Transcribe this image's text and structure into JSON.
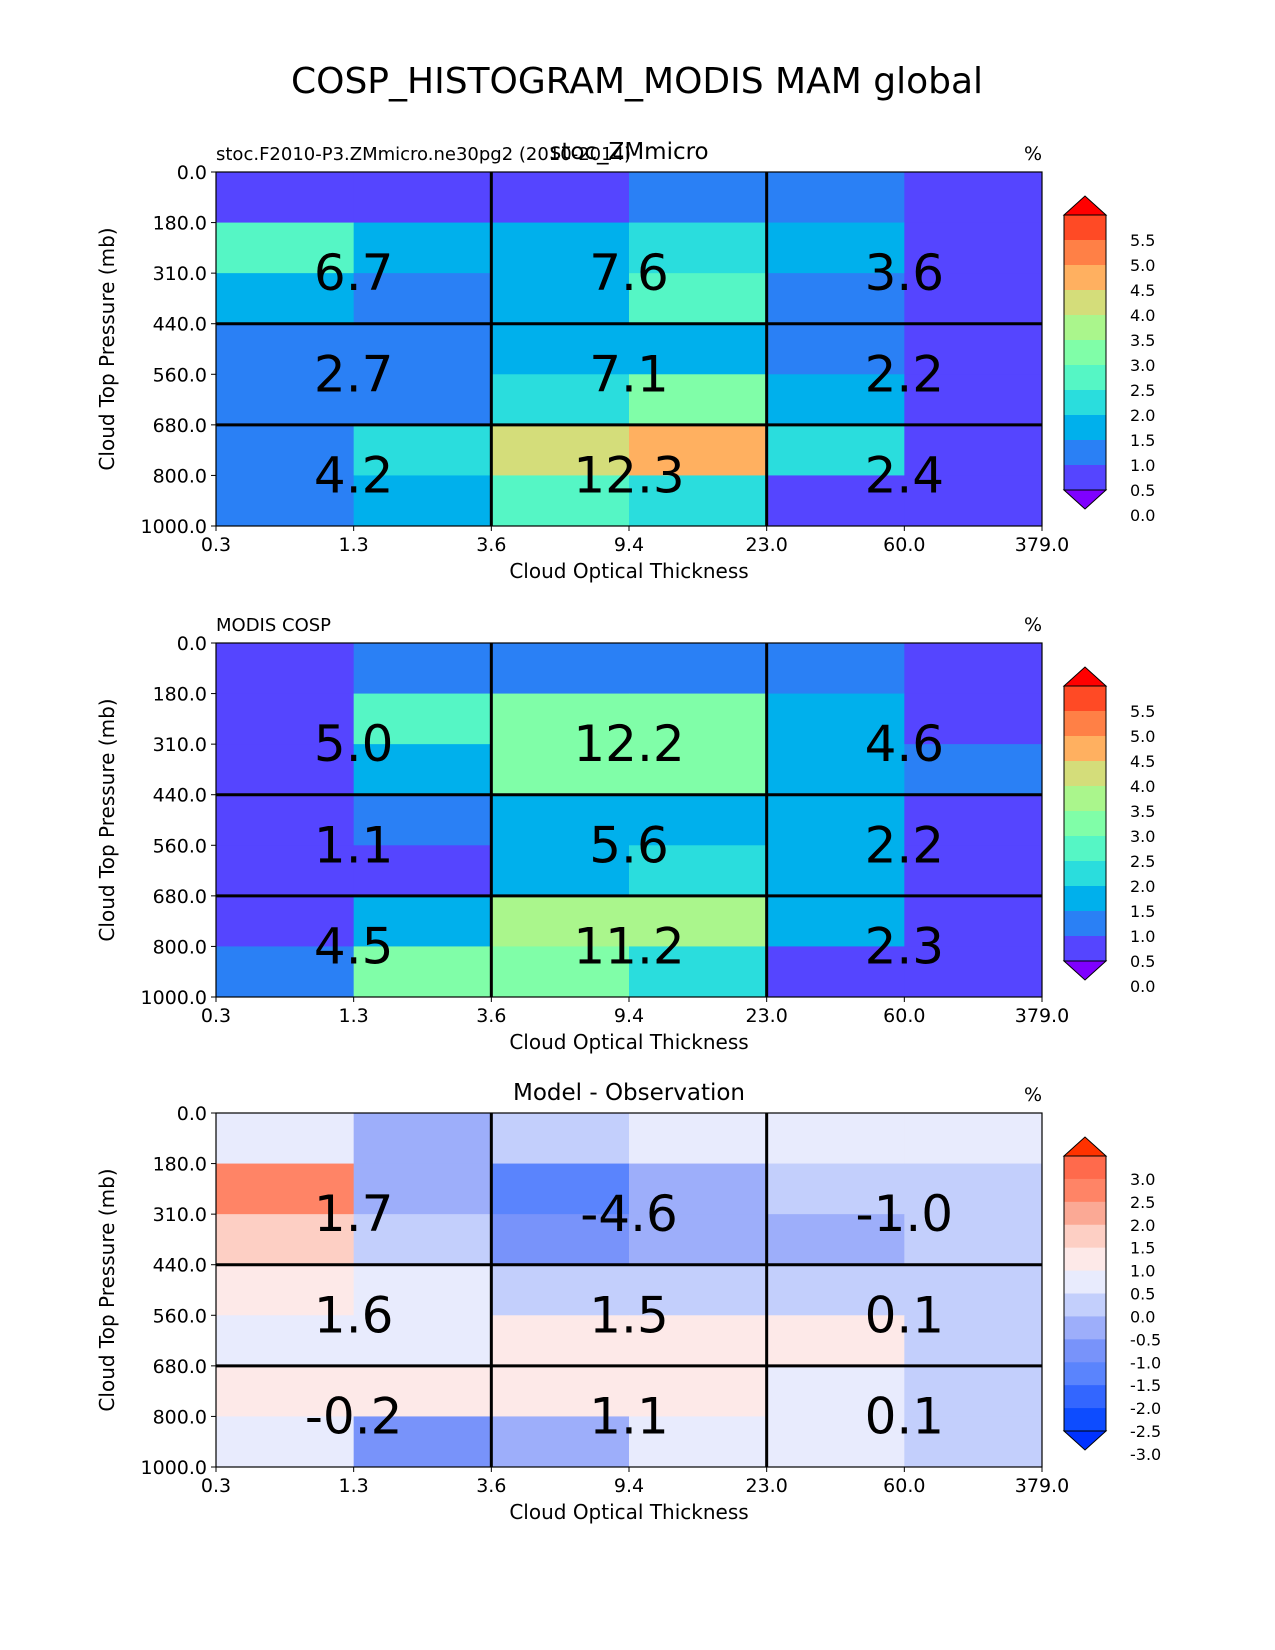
{
  "title": "COSP_HISTOGRAM_MODIS MAM global",
  "x_ticks": [
    "0.3",
    "1.3",
    "3.6",
    "9.4",
    "23.0",
    "60.0",
    "379.0"
  ],
  "y_ticks": [
    "0.0",
    "180.0",
    "310.0",
    "440.0",
    "560.0",
    "680.0",
    "800.0",
    "1000.0"
  ],
  "chart_data": [
    {
      "type": "heatmap",
      "title": "stoc_ZMmicro",
      "left_title": "stoc.F2010-P3.ZMmicro.ne30pg2 (2010-2014)",
      "units": "%",
      "xlabel": "Cloud Optical Thickness",
      "ylabel": "Cloud Top Pressure (mb)",
      "x_bins": [
        "0.3",
        "1.3",
        "3.6",
        "9.4",
        "23.0",
        "60.0",
        "379.0"
      ],
      "y_bins": [
        "0.0",
        "180.0",
        "310.0",
        "440.0",
        "560.0",
        "680.0",
        "800.0",
        "1000.0"
      ],
      "values": [
        [
          0.3,
          0.3,
          0.3,
          0.8,
          0.8,
          0.3
        ],
        [
          2.2,
          1.3,
          1.3,
          1.8,
          1.3,
          0.3
        ],
        [
          1.3,
          0.8,
          1.3,
          2.3,
          0.8,
          0.3
        ],
        [
          0.8,
          0.8,
          1.3,
          1.3,
          0.8,
          0.3
        ],
        [
          0.8,
          0.8,
          1.8,
          2.8,
          1.3,
          0.3
        ],
        [
          0.8,
          1.8,
          3.8,
          4.3,
          1.8,
          0.3
        ],
        [
          0.8,
          1.3,
          2.3,
          1.8,
          0.3,
          0.3
        ]
      ],
      "box_labels": [
        [
          "6.7",
          "7.6",
          "3.6"
        ],
        [
          "2.7",
          "7.1",
          "2.2"
        ],
        [
          "4.2",
          "12.3",
          "2.4"
        ]
      ],
      "colorbar": {
        "levels": [
          0.0,
          0.5,
          1.0,
          1.5,
          2.0,
          2.5,
          3.0,
          3.5,
          4.0,
          4.5,
          5.0,
          5.5
        ],
        "labels": [
          "5.5",
          "5.0",
          "4.5",
          "4.0",
          "3.5",
          "3.0",
          "2.5",
          "2.0",
          "1.5",
          "1.0",
          "0.5",
          "0.0"
        ],
        "under_color": "#7f00ff",
        "over_color": "#ff0000",
        "colors": [
          "#5545ff",
          "#2a80f5",
          "#00b0ec",
          "#2adddd",
          "#55f6c5",
          "#80fea8",
          "#aaf68c",
          "#d4dd7a",
          "#ffb060",
          "#ff8046",
          "#ff4a25"
        ]
      }
    },
    {
      "type": "heatmap",
      "title": "",
      "left_title": "MODIS COSP",
      "units": "%",
      "xlabel": "Cloud Optical Thickness",
      "ylabel": "Cloud Top Pressure (mb)",
      "x_bins": [
        "0.3",
        "1.3",
        "3.6",
        "9.4",
        "23.0",
        "60.0",
        "379.0"
      ],
      "y_bins": [
        "0.0",
        "180.0",
        "310.0",
        "440.0",
        "560.0",
        "680.0",
        "800.0",
        "1000.0"
      ],
      "values": [
        [
          0.3,
          0.8,
          0.8,
          0.8,
          0.8,
          0.3
        ],
        [
          0.3,
          2.3,
          2.8,
          2.8,
          1.3,
          0.3
        ],
        [
          0.3,
          1.3,
          2.8,
          2.8,
          1.3,
          0.8
        ],
        [
          0.3,
          0.8,
          1.3,
          1.3,
          1.3,
          0.3
        ],
        [
          0.3,
          0.3,
          1.3,
          1.8,
          1.3,
          0.3
        ],
        [
          0.3,
          1.3,
          3.3,
          3.3,
          1.3,
          0.3
        ],
        [
          0.8,
          2.8,
          2.8,
          1.8,
          0.3,
          0.3
        ]
      ],
      "box_labels": [
        [
          "5.0",
          "12.2",
          "4.6"
        ],
        [
          "1.1",
          "5.6",
          "2.2"
        ],
        [
          "4.5",
          "11.2",
          "2.3"
        ]
      ],
      "colorbar": {
        "levels": [
          0.0,
          0.5,
          1.0,
          1.5,
          2.0,
          2.5,
          3.0,
          3.5,
          4.0,
          4.5,
          5.0,
          5.5
        ],
        "labels": [
          "5.5",
          "5.0",
          "4.5",
          "4.0",
          "3.5",
          "3.0",
          "2.5",
          "2.0",
          "1.5",
          "1.0",
          "0.5",
          "0.0"
        ],
        "under_color": "#7f00ff",
        "over_color": "#ff0000",
        "colors": [
          "#5545ff",
          "#2a80f5",
          "#00b0ec",
          "#2adddd",
          "#55f6c5",
          "#80fea8",
          "#aaf68c",
          "#d4dd7a",
          "#ffb060",
          "#ff8046",
          "#ff4a25"
        ]
      }
    },
    {
      "type": "heatmap",
      "title": "Model - Observation",
      "left_title": "",
      "units": "%",
      "xlabel": "Cloud Optical Thickness",
      "ylabel": "Cloud Top Pressure (mb)",
      "x_bins": [
        "0.3",
        "1.3",
        "3.6",
        "9.4",
        "23.0",
        "60.0",
        "379.0"
      ],
      "y_bins": [
        "0.0",
        "180.0",
        "310.0",
        "440.0",
        "560.0",
        "680.0",
        "800.0",
        "1000.0"
      ],
      "values": [
        [
          0.2,
          -0.7,
          -0.2,
          0.2,
          0.2,
          0.2
        ],
        [
          2.2,
          -0.7,
          -1.7,
          -0.7,
          -0.2,
          -0.2
        ],
        [
          1.2,
          -0.2,
          -1.2,
          -0.7,
          -0.7,
          -0.2
        ],
        [
          0.7,
          0.2,
          -0.2,
          -0.2,
          -0.2,
          -0.2
        ],
        [
          0.2,
          0.2,
          0.7,
          0.7,
          0.7,
          -0.2
        ],
        [
          0.7,
          0.7,
          0.7,
          0.7,
          0.2,
          -0.2
        ],
        [
          0.2,
          -1.2,
          -0.7,
          0.2,
          0.2,
          -0.2
        ]
      ],
      "box_labels": [
        [
          "1.7",
          "-4.6",
          "-1.0"
        ],
        [
          "1.6",
          "1.5",
          "0.1"
        ],
        [
          "-0.2",
          "1.1",
          "0.1"
        ]
      ],
      "colorbar": {
        "levels": [
          -3.0,
          -2.5,
          -2.0,
          -1.5,
          -1.0,
          -0.5,
          0.0,
          0.5,
          1.0,
          1.5,
          2.0,
          2.5,
          3.0
        ],
        "labels": [
          "3.0",
          "2.5",
          "2.0",
          "1.5",
          "1.0",
          "0.5",
          "0.0",
          "-0.5",
          "-1.0",
          "-1.5",
          "-2.0",
          "-2.5",
          "-3.0"
        ],
        "under_color": "#0032ff",
        "over_color": "#ff3200",
        "colors": [
          "#0d4cff",
          "#3366ff",
          "#5a84fd",
          "#7893fa",
          "#9daefa",
          "#c3cffc",
          "#e8ebfd",
          "#fde9e8",
          "#fdcfc4",
          "#fba995",
          "#ff8466",
          "#ff6a4c"
        ]
      }
    }
  ]
}
